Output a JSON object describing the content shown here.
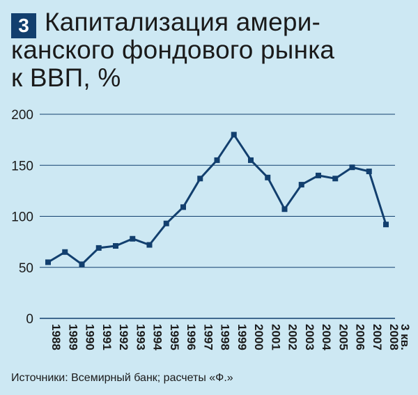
{
  "badge": "3",
  "title_lines": [
    "Капитализация амери-",
    "канского фондового рынка",
    "к ВВП, %"
  ],
  "source": "Источники: Всемирный банк; расчеты «Ф.»",
  "colors": {
    "background": "#cde8f3",
    "line": "#123f6e",
    "grid": "#123f6e",
    "badge": "#123f6e"
  },
  "chart_data": {
    "type": "line",
    "title": "Капитализация американского фондового рынка к ВВП, %",
    "xlabel": "",
    "ylabel": "",
    "categories": [
      "1988",
      "1989",
      "1990",
      "1991",
      "1992",
      "1993",
      "1994",
      "1995",
      "1996",
      "1997",
      "1998",
      "1999",
      "2000",
      "2001",
      "2002",
      "2003",
      "2004",
      "2005",
      "2006",
      "2007",
      "2008"
    ],
    "last_category_note": "3 кв.",
    "series": [
      {
        "values": [
          55,
          65,
          53,
          69,
          71,
          78,
          72,
          93,
          109,
          137,
          155,
          180,
          155,
          138,
          107,
          131,
          140,
          137,
          148,
          144,
          92
        ]
      }
    ],
    "ylim": [
      0,
      200
    ],
    "yticks": [
      0,
      50,
      100,
      150,
      200
    ],
    "grid": true,
    "legend": "none"
  }
}
